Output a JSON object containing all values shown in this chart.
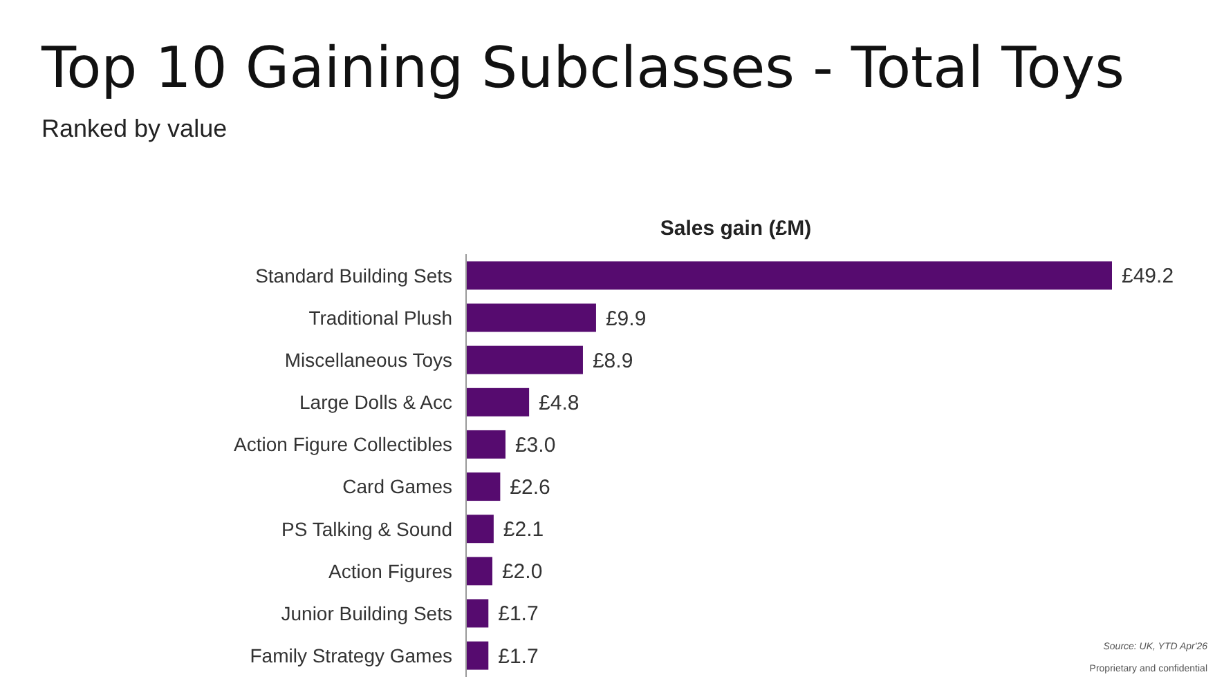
{
  "chart_data": {
    "type": "bar",
    "orientation": "horizontal",
    "title": "Top 10 Gaining Subclasses - Total Toys",
    "subtitle": "Ranked by value",
    "xlabel": "Sales gain (£M)",
    "categories": [
      "Standard Building Sets",
      "Traditional Plush",
      "Miscellaneous Toys",
      "Large Dolls & Acc",
      "Action Figure Collectibles",
      "Card Games",
      "PS Talking & Sound",
      "Action Figures",
      "Junior Building Sets",
      "Family Strategy Games"
    ],
    "values": [
      49.2,
      9.9,
      8.9,
      4.8,
      3.0,
      2.6,
      2.1,
      2.0,
      1.7,
      1.7
    ],
    "value_labels": [
      "£49.2",
      "£9.9",
      "£8.9",
      "£4.8",
      "£3.0",
      "£2.6",
      "£2.1",
      "£2.0",
      "£1.7",
      "£1.7"
    ],
    "color": "#560b6f",
    "annotations": [
      "Source: UK, YTD Apr'26",
      "Proprietary and confidential"
    ]
  }
}
